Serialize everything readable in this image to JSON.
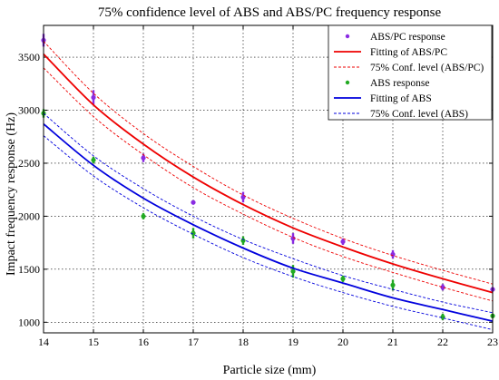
{
  "chart_data": {
    "type": "scatter",
    "title": "75% confidence level of ABS and ABS/PC frequency response",
    "xlabel": "Particle size (mm)",
    "ylabel": "Impact frequency response (Hz)",
    "xlim": [
      14,
      23
    ],
    "ylim": [
      900,
      3800
    ],
    "xticks": [
      14,
      15,
      16,
      17,
      18,
      19,
      20,
      21,
      22,
      23
    ],
    "yticks": [
      1000,
      1500,
      2000,
      2500,
      3000,
      3500
    ],
    "grid": true,
    "legend_position": "top-right",
    "legend": [
      {
        "label": "ABS/PC response",
        "kind": "marker",
        "color": "#8a2be2"
      },
      {
        "label": "Fitting of ABS/PC",
        "kind": "solid",
        "color": "#ee0000"
      },
      {
        "label": "75% Conf. level (ABS/PC)",
        "kind": "dashed",
        "color": "#ee0000"
      },
      {
        "label": "ABS response",
        "kind": "marker",
        "color": "#22aa22"
      },
      {
        "label": "Fitting of ABS",
        "kind": "solid",
        "color": "#0000dd"
      },
      {
        "label": "75% Conf. level (ABS)",
        "kind": "dashed",
        "color": "#0000dd"
      }
    ],
    "series": [
      {
        "kind": "points",
        "color": "#8a2be2",
        "x": [
          14,
          15,
          16,
          17,
          18,
          19,
          20,
          21,
          22,
          23
        ],
        "y": [
          3660,
          3120,
          2550,
          2130,
          2180,
          1790,
          1760,
          1640,
          1330,
          1310
        ],
        "spread": [
          60,
          70,
          40,
          20,
          50,
          50,
          30,
          40,
          30,
          20
        ]
      },
      {
        "kind": "points",
        "color": "#22aa22",
        "x": [
          14,
          15,
          16,
          17,
          18,
          19,
          20,
          21,
          22,
          23
        ],
        "y": [
          2970,
          2530,
          2000,
          1840,
          1770,
          1480,
          1410,
          1350,
          1050,
          1060
        ],
        "spread": [
          40,
          30,
          30,
          50,
          40,
          60,
          30,
          50,
          30,
          20
        ]
      },
      {
        "kind": "solid",
        "color": "#ee0000",
        "x": [
          14,
          15,
          16,
          17,
          18,
          19,
          20,
          21,
          22,
          23
        ],
        "y": [
          3530,
          3050,
          2680,
          2370,
          2110,
          1890,
          1710,
          1550,
          1410,
          1280
        ]
      },
      {
        "kind": "dashed",
        "color": "#ee0000",
        "x": [
          14,
          15,
          16,
          17,
          18,
          19,
          20,
          21,
          22,
          23
        ],
        "y": [
          3650,
          3160,
          2780,
          2470,
          2200,
          1980,
          1790,
          1630,
          1490,
          1360
        ]
      },
      {
        "kind": "dashed",
        "color": "#ee0000",
        "x": [
          14,
          15,
          16,
          17,
          18,
          19,
          20,
          21,
          22,
          23
        ],
        "y": [
          3400,
          2940,
          2580,
          2270,
          2020,
          1800,
          1620,
          1470,
          1330,
          1200
        ]
      },
      {
        "kind": "solid",
        "color": "#0000dd",
        "x": [
          14,
          15,
          16,
          17,
          18,
          19,
          20,
          21,
          22,
          23
        ],
        "y": [
          2870,
          2480,
          2170,
          1920,
          1700,
          1510,
          1370,
          1230,
          1120,
          1010
        ]
      },
      {
        "kind": "dashed",
        "color": "#0000dd",
        "x": [
          14,
          15,
          16,
          17,
          18,
          19,
          20,
          21,
          22,
          23
        ],
        "y": [
          2970,
          2570,
          2260,
          2000,
          1780,
          1600,
          1440,
          1310,
          1190,
          1090
        ]
      },
      {
        "kind": "dashed",
        "color": "#0000dd",
        "x": [
          14,
          15,
          16,
          17,
          18,
          19,
          20,
          21,
          22,
          23
        ],
        "y": [
          2760,
          2380,
          2080,
          1830,
          1610,
          1430,
          1280,
          1150,
          1040,
          930
        ]
      }
    ]
  }
}
